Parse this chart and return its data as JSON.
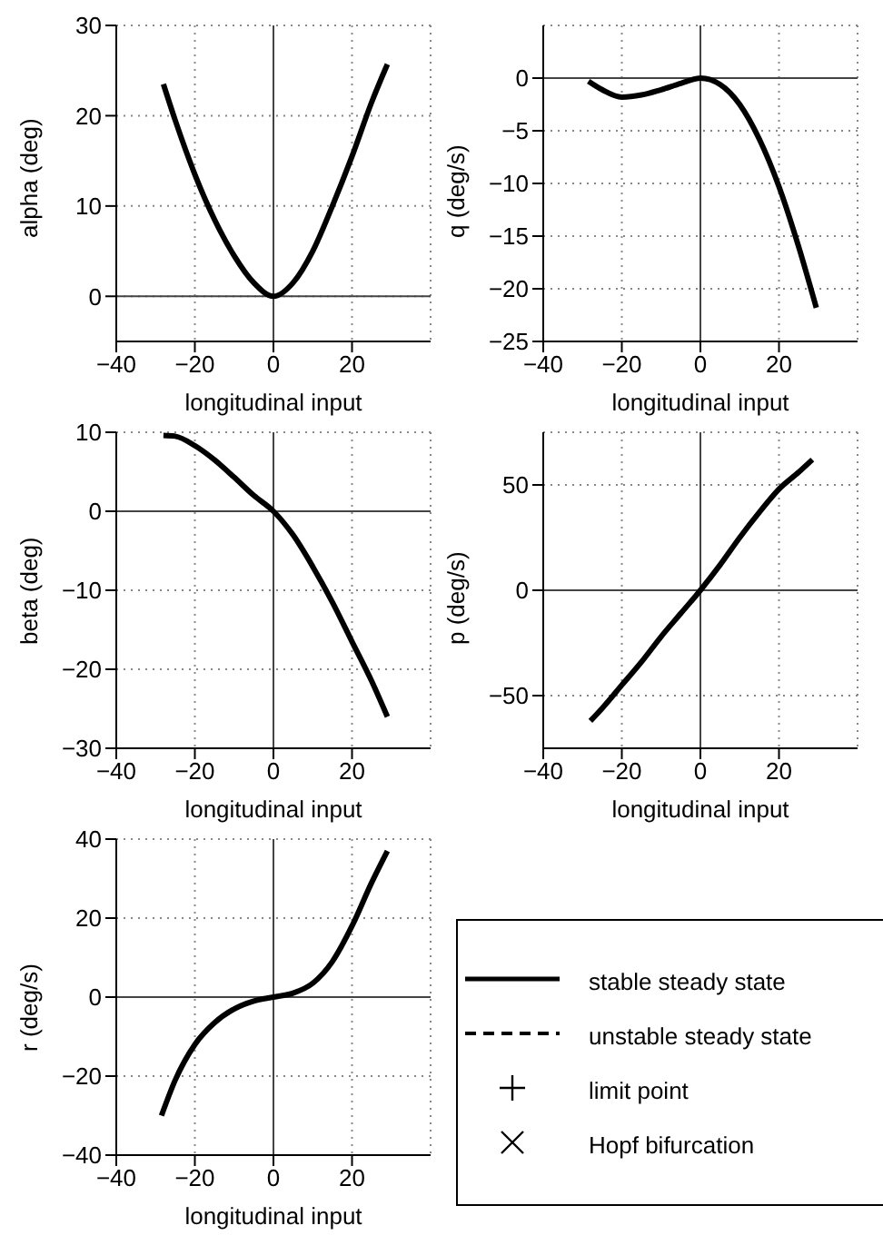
{
  "chart_data": [
    {
      "type": "line",
      "xlabel": "longitudinal input",
      "ylabel": "alpha (deg)",
      "x": [
        -28,
        -25,
        -20,
        -15,
        -10,
        -5,
        0,
        5,
        10,
        15,
        20,
        25,
        29
      ],
      "values": [
        23.5,
        19.5,
        13.5,
        8.5,
        4.5,
        1.5,
        0,
        1.5,
        5,
        10,
        15.5,
        21.5,
        25.7
      ],
      "color": "#000000",
      "line_style": "solid",
      "xlim": [
        -40,
        40
      ],
      "xticks": [
        -40,
        -20,
        0,
        20
      ],
      "ylim": [
        -5,
        30
      ],
      "yticks": [
        0,
        10,
        20,
        30
      ],
      "grid": true
    },
    {
      "type": "line",
      "xlabel": "longitudinal input",
      "ylabel": "q (deg/s)",
      "x": [
        -28.5,
        -25,
        -20,
        -15,
        -10,
        -5,
        0,
        5,
        10,
        15,
        20,
        25,
        29.5
      ],
      "values": [
        -0.3,
        -1.1,
        -1.8,
        -1.6,
        -1.1,
        -0.5,
        0,
        -0.6,
        -2.5,
        -5.8,
        -10.3,
        -16,
        -21.8
      ],
      "color": "#000000",
      "line_style": "solid",
      "xlim": [
        -40,
        40
      ],
      "xticks": [
        -40,
        -20,
        0,
        20
      ],
      "ylim": [
        -25,
        5
      ],
      "yticks": [
        -25,
        -20,
        -15,
        -10,
        -5,
        0
      ],
      "grid": true
    },
    {
      "type": "line",
      "xlabel": "longitudinal input",
      "ylabel": "beta (deg)",
      "x": [
        -28,
        -25,
        -20,
        -15,
        -10,
        -5,
        0,
        5,
        10,
        15,
        20,
        25,
        29
      ],
      "values": [
        9.6,
        9.5,
        8.3,
        6.5,
        4.3,
        2,
        0,
        -3,
        -7,
        -11.5,
        -16.5,
        -21.5,
        -26
      ],
      "color": "#000000",
      "line_style": "solid",
      "xlim": [
        -40,
        40
      ],
      "xticks": [
        -40,
        -20,
        0,
        20
      ],
      "ylim": [
        -30,
        10
      ],
      "yticks": [
        -30,
        -20,
        -10,
        0,
        10
      ],
      "grid": true
    },
    {
      "type": "line",
      "xlabel": "longitudinal input",
      "ylabel": "p (deg/s)",
      "x": [
        -28,
        -25,
        -20,
        -15,
        -10,
        -5,
        0,
        5,
        10,
        15,
        20,
        25,
        28.5
      ],
      "values": [
        -62,
        -56,
        -45,
        -34,
        -22,
        -11,
        0,
        12,
        25,
        37,
        48,
        56,
        62
      ],
      "color": "#000000",
      "line_style": "solid",
      "xlim": [
        -40,
        40
      ],
      "xticks": [
        -40,
        -20,
        0,
        20
      ],
      "ylim": [
        -75,
        75
      ],
      "yticks": [
        -50,
        0,
        50
      ],
      "grid": true
    },
    {
      "type": "line",
      "xlabel": "longitudinal input",
      "ylabel": "r (deg/s)",
      "x": [
        -28.5,
        -25,
        -20,
        -15,
        -10,
        -5,
        0,
        5,
        10,
        15,
        20,
        25,
        29
      ],
      "values": [
        -30,
        -21,
        -12,
        -6.5,
        -3,
        -1,
        0,
        1,
        3.5,
        9,
        18,
        29,
        37
      ],
      "color": "#000000",
      "line_style": "solid",
      "xlim": [
        -40,
        40
      ],
      "xticks": [
        -40,
        -20,
        0,
        20
      ],
      "ylim": [
        -40,
        40
      ],
      "yticks": [
        -40,
        -20,
        0,
        20,
        40
      ],
      "grid": true
    },
    {
      "type": "other",
      "annotations": [
        "stable steady state",
        "unstable steady state",
        "limit point",
        "Hopf bifurcation"
      ]
    }
  ]
}
